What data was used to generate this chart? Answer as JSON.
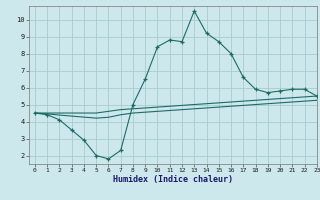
{
  "xlabel": "Humidex (Indice chaleur)",
  "bg_color": "#cde8ec",
  "grid_color": "#aacccc",
  "line_color": "#1e6b65",
  "xlim": [
    -0.5,
    23
  ],
  "ylim": [
    1.5,
    10.8
  ],
  "xticks": [
    0,
    1,
    2,
    3,
    4,
    5,
    6,
    7,
    8,
    9,
    10,
    11,
    12,
    13,
    14,
    15,
    16,
    17,
    18,
    19,
    20,
    21,
    22,
    23
  ],
  "yticks": [
    2,
    3,
    4,
    5,
    6,
    7,
    8,
    9,
    10
  ],
  "curve1_x": [
    0,
    1,
    2,
    3,
    4,
    5,
    6,
    7,
    8,
    9,
    10,
    11,
    12,
    13,
    14,
    15,
    16,
    17,
    18,
    19,
    20,
    21,
    22,
    23
  ],
  "curve1_y": [
    4.5,
    4.4,
    4.1,
    3.5,
    2.9,
    2.0,
    1.8,
    2.3,
    5.0,
    6.5,
    8.4,
    8.8,
    8.7,
    10.5,
    9.2,
    8.7,
    8.0,
    6.6,
    5.9,
    5.7,
    5.8,
    5.9,
    5.9,
    5.5
  ],
  "curve2_x": [
    0,
    1,
    2,
    3,
    4,
    5,
    6,
    7,
    8,
    9,
    10,
    11,
    12,
    13,
    14,
    15,
    16,
    17,
    18,
    19,
    20,
    21,
    22,
    23
  ],
  "curve2_y": [
    4.5,
    4.45,
    4.38,
    4.32,
    4.26,
    4.2,
    4.25,
    4.4,
    4.5,
    4.55,
    4.6,
    4.65,
    4.7,
    4.75,
    4.8,
    4.85,
    4.9,
    4.95,
    5.0,
    5.05,
    5.1,
    5.15,
    5.2,
    5.25
  ],
  "curve3_x": [
    0,
    1,
    2,
    3,
    4,
    5,
    6,
    7,
    8,
    9,
    10,
    11,
    12,
    13,
    14,
    15,
    16,
    17,
    18,
    19,
    20,
    21,
    22,
    23
  ],
  "curve3_y": [
    4.5,
    4.5,
    4.5,
    4.5,
    4.5,
    4.5,
    4.6,
    4.7,
    4.75,
    4.8,
    4.85,
    4.9,
    4.95,
    5.0,
    5.05,
    5.1,
    5.15,
    5.2,
    5.25,
    5.3,
    5.35,
    5.4,
    5.45,
    5.5
  ]
}
